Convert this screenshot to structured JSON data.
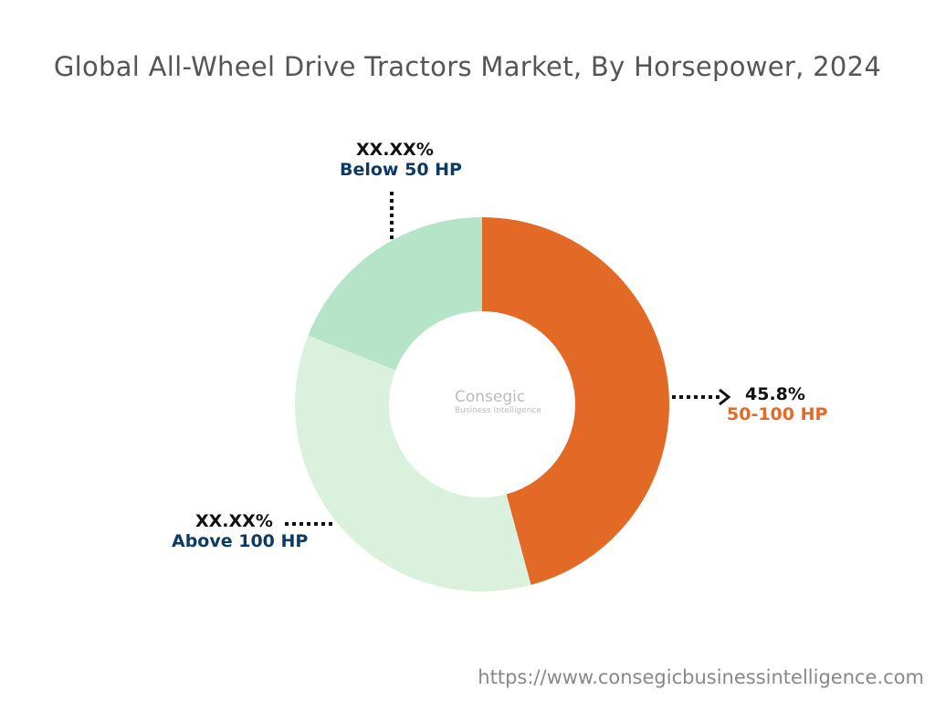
{
  "title": "Global All-Wheel Drive Tractors Market, By Horsepower, 2024",
  "url": "https://www.consegicbusinessintelligence.com",
  "logo": {
    "name": "Consegic",
    "tagline": "Business Intelligence"
  },
  "chart_data": {
    "type": "pie",
    "title": "Global All-Wheel Drive Tractors Market, By Horsepower, 2024",
    "donut": true,
    "categories": [
      "50-100 HP",
      "Above 100 HP",
      "Below 50 HP"
    ],
    "values": [
      45.8,
      35.2,
      19.0
    ],
    "data_labels": [
      "45.8%",
      "XX.XX%",
      "XX.XX%"
    ],
    "colors": [
      "#E36926",
      "#DAF2DD",
      "#B6E4C8"
    ],
    "label_colors": [
      "#E36926",
      "#0E3A66",
      "#0E3A66"
    ]
  }
}
